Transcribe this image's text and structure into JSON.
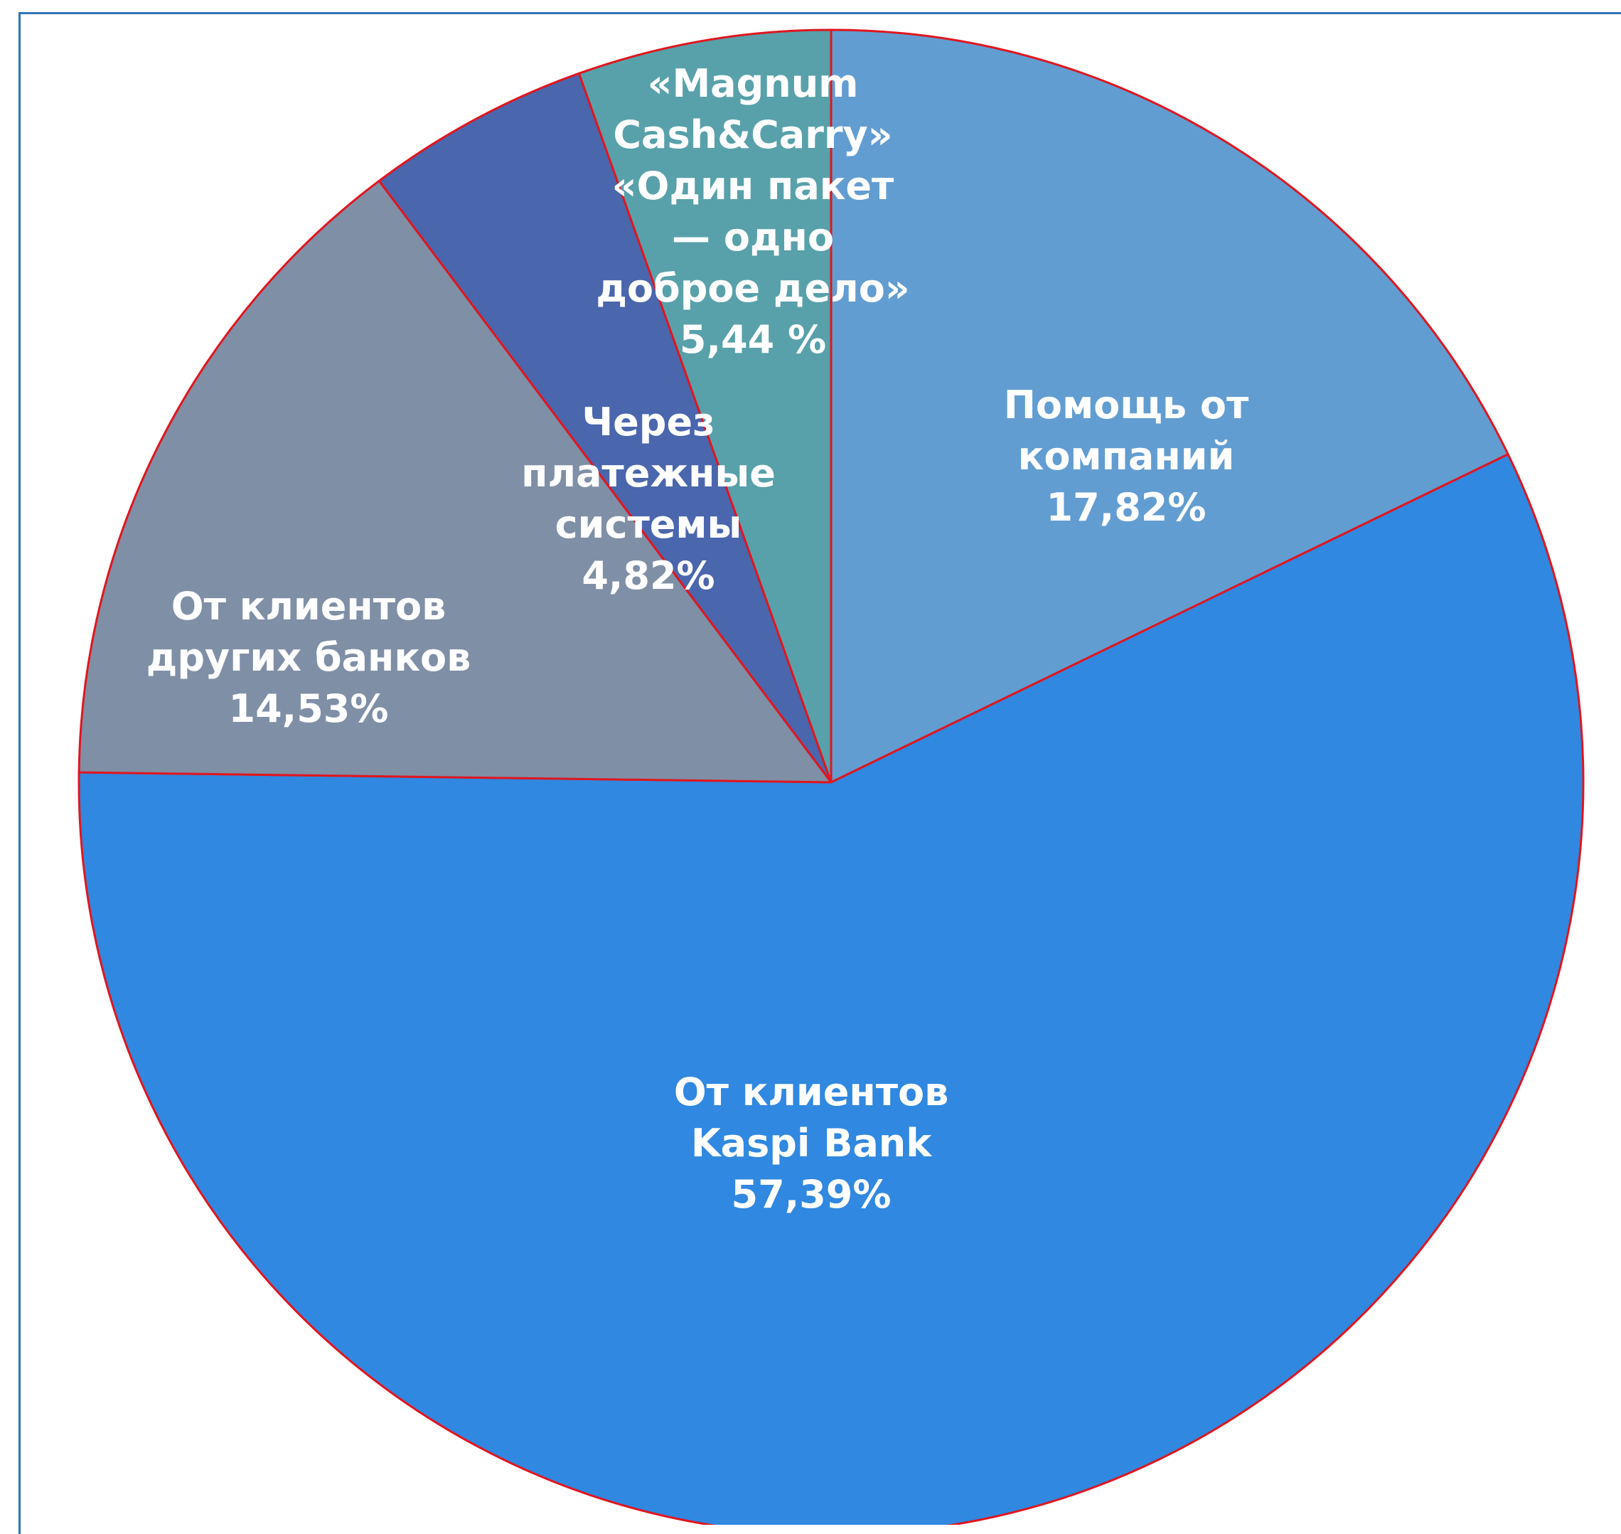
{
  "chart_data": {
    "type": "pie",
    "title": "",
    "start_angle_deg": 0,
    "direction": "clockwise",
    "slices": [
      {
        "label_lines": [
          "Помощь от",
          "компаний"
        ],
        "value_text": "17,82%",
        "value": 17.82,
        "color": "#629dd1"
      },
      {
        "label_lines": [
          "От клиентов",
          "Kaspi Bank"
        ],
        "value_text": "57,39%",
        "value": 57.39,
        "color": "#3088e0"
      },
      {
        "label_lines": [
          "От клиентов",
          "других банков"
        ],
        "value_text": "14,53%",
        "value": 14.53,
        "color": "#7f8fa6"
      },
      {
        "label_lines": [
          "Через",
          "платежные",
          "системы"
        ],
        "value_text": "4,82%",
        "value": 4.82,
        "color": "#4a66ad"
      },
      {
        "label_lines": [
          "«Magnum",
          "Cash&Carry»",
          "«Один пакет",
          "— одно",
          "доброе дело»"
        ],
        "value_text": "5,44 %",
        "value": 5.44,
        "color": "#58a1aa"
      }
    ],
    "slice_border_color": "#e0161f"
  }
}
